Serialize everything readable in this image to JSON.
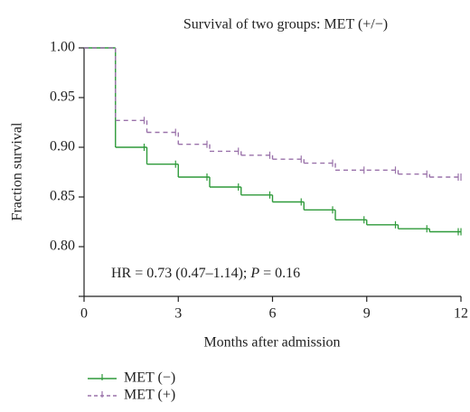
{
  "chart_data": {
    "type": "step",
    "title": "Survival of two groups: MET (+/−)",
    "x_label": "Months after admission",
    "y_label": "Fraction survival",
    "annotation": [
      "HR = 0.73 (0.47–1.14); ",
      "P",
      " = 0.16"
    ],
    "xlim": [
      0,
      12
    ],
    "xticks": [
      0,
      3,
      6,
      9,
      12
    ],
    "ylim": [
      0.75,
      1.0
    ],
    "yticks": [
      {
        "value": 0.8,
        "label": "0.80"
      },
      0.85,
      {
        "value": 0.9,
        "label": "0.90"
      },
      0.95,
      {
        "value": 1,
        "label": "1.00"
      }
    ],
    "x": [
      0,
      1,
      2,
      3,
      4,
      5,
      6,
      7,
      8,
      9,
      10,
      11,
      12
    ],
    "series": [
      {
        "name": "MET (−)",
        "color": "#2e9a3a",
        "dashed": false,
        "values": [
          1.0,
          0.9,
          0.883,
          0.87,
          0.86,
          0.852,
          0.845,
          0.837,
          0.827,
          0.822,
          0.818,
          0.815,
          0.815
        ]
      },
      {
        "name": "MET (+)",
        "color": "#9a72aa",
        "dashed": true,
        "values": [
          1.0,
          0.927,
          0.915,
          0.903,
          0.896,
          0.892,
          0.888,
          0.884,
          0.877,
          0.877,
          0.873,
          0.87,
          0.87
        ]
      }
    ],
    "legend": "bottom-left"
  }
}
